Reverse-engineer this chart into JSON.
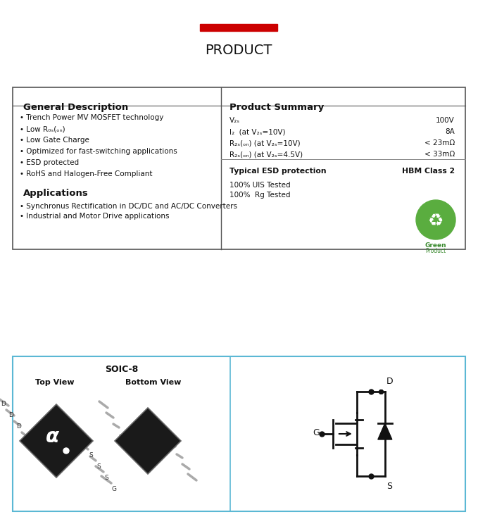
{
  "title": "PRODUCT",
  "red_bar_color": "#cc0000",
  "border_color": "#333333",
  "table_border_color": "#555555",
  "blue_box_color": "#5bb8d4",
  "background_color": "#ffffff",
  "title_fontsize": 14,
  "gen_desc_title": "General Description",
  "gen_desc_bullets": [
    "Trench Power MV MOSFET technology",
    "Low R₀ₛ(ₒₙ)",
    "Low Gate Charge",
    "Optimized for fast-switching applications",
    "ESD protected",
    "RoHS and Halogen-Free Compliant"
  ],
  "applications_title": "Applications",
  "applications_bullets": [
    "Synchronus Rectification in DC/DC and AC/DC Converters",
    "Industrial and Motor Drive applications"
  ],
  "prod_summary_title": "Product Summary",
  "prod_summary_rows": [
    {
      "param": "V₂ₛ",
      "value": "100V"
    },
    {
      "param": "I₂  (at V₂ₛ=10V)",
      "value": "8A"
    },
    {
      "param": "R₂ₛ(ₒₙ) (at V₂ₛ=10V)",
      "value": "< 23mΩ"
    },
    {
      "param": "R₂ₛ(ₒₙ) (at V₂ₛ=4.5V)",
      "value": "< 33mΩ"
    }
  ],
  "esd_label": "Typical ESD protection",
  "esd_value": "HBM Class 2",
  "tested_lines": [
    "100% UIS Tested",
    "100%  Rg Tested"
  ],
  "soic_title": "SOIC-8",
  "top_view_label": "Top View",
  "bottom_view_label": "Bottom View"
}
